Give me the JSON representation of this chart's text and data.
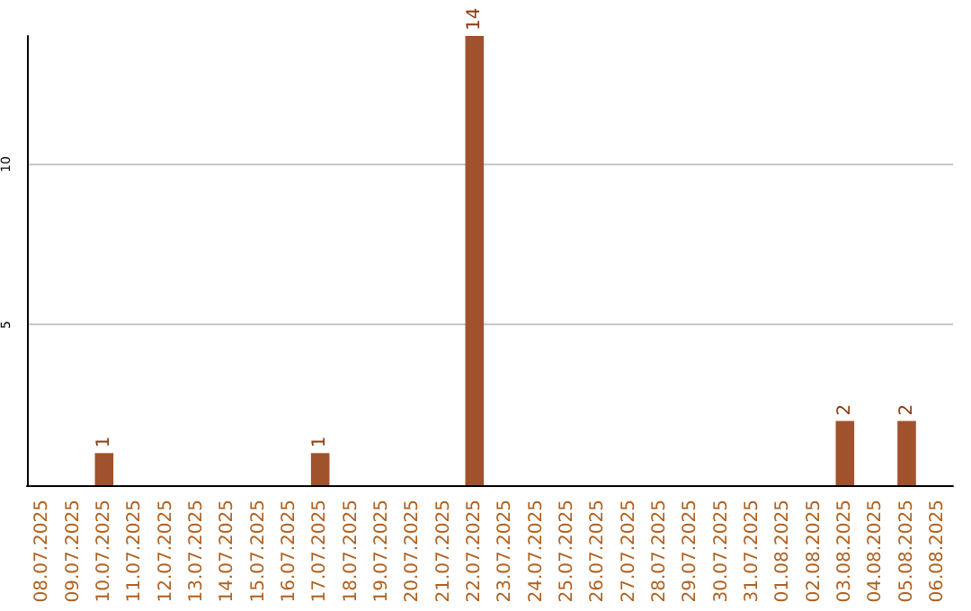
{
  "chart_data": {
    "type": "bar",
    "categories": [
      "08.07.2025",
      "09.07.2025",
      "10.07.2025",
      "11.07.2025",
      "12.07.2025",
      "13.07.2025",
      "14.07.2025",
      "15.07.2025",
      "16.07.2025",
      "17.07.2025",
      "18.07.2025",
      "19.07.2025",
      "20.07.2025",
      "21.07.2025",
      "22.07.2025",
      "23.07.2025",
      "24.07.2025",
      "25.07.2025",
      "26.07.2025",
      "27.07.2025",
      "28.07.2025",
      "29.07.2025",
      "30.07.2025",
      "31.07.2025",
      "01.08.2025",
      "02.08.2025",
      "03.08.2025",
      "04.08.2025",
      "05.08.2025",
      "06.08.2025"
    ],
    "values": [
      0,
      0,
      1,
      0,
      0,
      0,
      0,
      0,
      0,
      1,
      0,
      0,
      0,
      0,
      14,
      0,
      0,
      0,
      0,
      0,
      0,
      0,
      0,
      0,
      0,
      0,
      2,
      0,
      2,
      0
    ],
    "value_labels": [
      null,
      null,
      "1",
      null,
      null,
      null,
      null,
      null,
      null,
      "1",
      null,
      null,
      null,
      null,
      "14",
      null,
      null,
      null,
      null,
      null,
      null,
      null,
      null,
      null,
      null,
      null,
      "2",
      null,
      "2",
      null
    ],
    "color": "#a0522d",
    "ylim": [
      0,
      14
    ],
    "yticks": [
      5,
      10
    ],
    "grid": "y"
  }
}
